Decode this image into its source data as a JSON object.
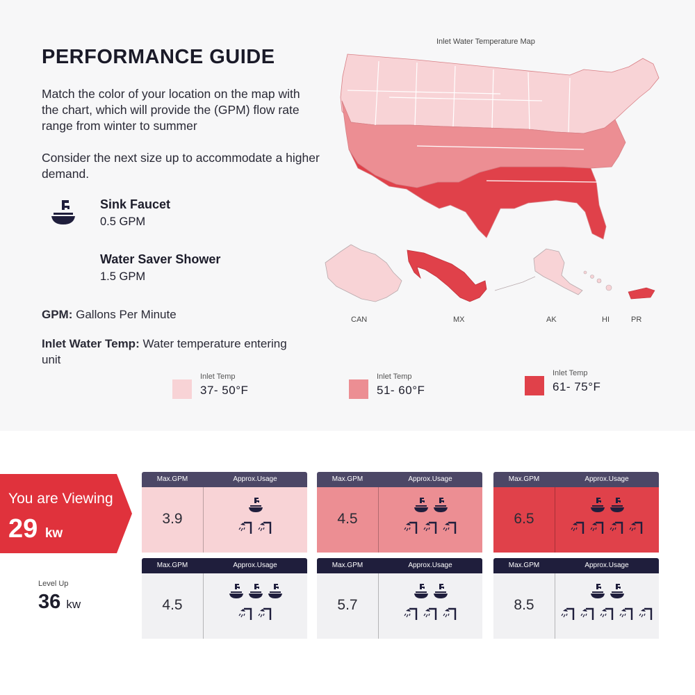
{
  "title": "PERFORMANCE GUIDE",
  "description1": "Match the color of your location on the map with the chart, which will provide the (GPM) flow rate range from winter to summer",
  "description2": "Consider the next size up to accommodate a higher demand.",
  "fixtures": [
    {
      "name": "Sink Faucet",
      "value": "0.5 GPM",
      "icon": "sink-faucet-icon"
    },
    {
      "name": "Water Saver Shower",
      "value": "1.5 GPM",
      "icon": "shower-icon"
    }
  ],
  "definitions": {
    "gpm_term": "GPM:",
    "gpm_text": " Gallons Per Minute",
    "inlet_term": "Inlet Water Temp:",
    "inlet_text": " Water temperature entering unit"
  },
  "map": {
    "title": "Inlet Water Temperature Map",
    "regions": [
      "CAN",
      "MX",
      "AK",
      "HI",
      "PR"
    ]
  },
  "legend": [
    {
      "caption": "Inlet Temp",
      "range": "37- 50°F",
      "color": "#f8d3d6"
    },
    {
      "caption": "Inlet Temp",
      "range": "51- 60°F",
      "color": "#ec8e93"
    },
    {
      "caption": "Inlet Temp",
      "range": "61- 75°F",
      "color": "#e0414a"
    }
  ],
  "viewing": {
    "label": "You are Viewing",
    "kw": "29",
    "unit": "kw",
    "color": "#e0323c"
  },
  "levelup": {
    "label": "Level Up",
    "kw": "36",
    "unit": "kw"
  },
  "table_headers": {
    "gpm": "Max.GPM",
    "usage": "Approx.Usage"
  },
  "cards": [
    {
      "gpm": "3.9",
      "sinks": 1,
      "showers": 2
    },
    {
      "gpm": "4.5",
      "sinks": 2,
      "showers": 3
    },
    {
      "gpm": "6.5",
      "sinks": 2,
      "showers": 4
    },
    {
      "gpm": "4.5",
      "sinks": 3,
      "showers": 2
    },
    {
      "gpm": "5.7",
      "sinks": 2,
      "showers": 3
    },
    {
      "gpm": "8.5",
      "sinks": 2,
      "showers": 5
    }
  ]
}
